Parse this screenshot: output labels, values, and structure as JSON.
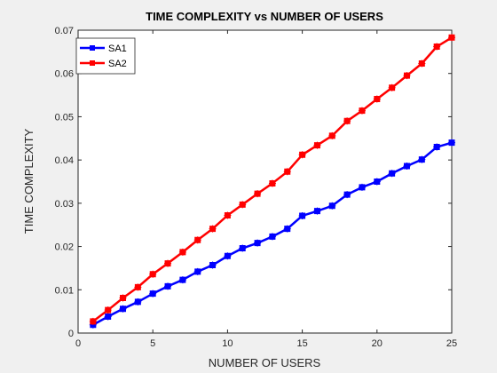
{
  "chart_data": {
    "type": "line",
    "title": "TIME COMPLEXITY vs NUMBER OF USERS",
    "xlabel": "NUMBER OF USERS",
    "ylabel": "TIME COMPLEXITY",
    "xlim": [
      0,
      25
    ],
    "ylim": [
      0,
      0.07
    ],
    "xticks": [
      "0",
      "5",
      "10",
      "15",
      "20",
      "25"
    ],
    "yticks": [
      "0",
      "0.01",
      "0.02",
      "0.03",
      "0.04",
      "0.05",
      "0.06",
      "0.07"
    ],
    "x": [
      1,
      2,
      3,
      4,
      5,
      6,
      7,
      8,
      9,
      10,
      11,
      12,
      13,
      14,
      15,
      16,
      17,
      18,
      19,
      20,
      21,
      22,
      23,
      24,
      25
    ],
    "legend_position": "top-left",
    "grid": false,
    "series": [
      {
        "name": "SA1",
        "color": "#0000ff",
        "values": [
          0.0019,
          0.0038,
          0.0056,
          0.0072,
          0.0091,
          0.0108,
          0.0123,
          0.0142,
          0.0157,
          0.0178,
          0.0196,
          0.0208,
          0.0223,
          0.0241,
          0.0271,
          0.0282,
          0.0294,
          0.032,
          0.0337,
          0.035,
          0.0369,
          0.0386,
          0.0401,
          0.043,
          0.044
        ]
      },
      {
        "name": "SA2",
        "color": "#ff0000",
        "values": [
          0.0027,
          0.0053,
          0.0081,
          0.0106,
          0.0136,
          0.0161,
          0.0187,
          0.0215,
          0.0241,
          0.0272,
          0.0297,
          0.0322,
          0.0346,
          0.0373,
          0.0412,
          0.0434,
          0.0456,
          0.049,
          0.0514,
          0.0541,
          0.0567,
          0.0595,
          0.0623,
          0.0662,
          0.0683
        ]
      }
    ]
  }
}
